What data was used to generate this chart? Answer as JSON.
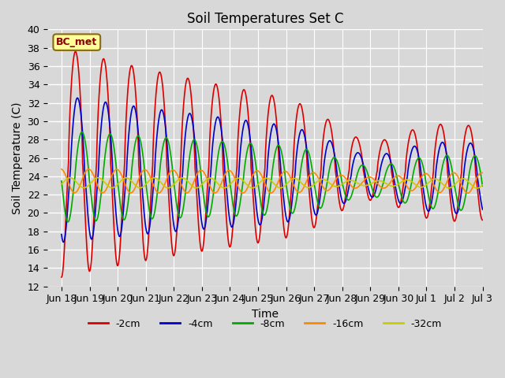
{
  "title": "Soil Temperatures Set C",
  "xlabel": "Time",
  "ylabel": "Soil Temperature (C)",
  "ylim": [
    12,
    40
  ],
  "yticks": [
    12,
    14,
    16,
    18,
    20,
    22,
    24,
    26,
    28,
    30,
    32,
    34,
    36,
    38,
    40
  ],
  "background_color": "#d8d8d8",
  "plot_bg_color": "#d8d8d8",
  "annotation_text": "BC_met",
  "annotation_box_color": "#ffff99",
  "annotation_box_edge": "#8b6914",
  "series": [
    {
      "label": "-2cm",
      "color": "#dd0000",
      "base_amp": 12.5,
      "mean": 25.5,
      "period": 1.0,
      "phase_shift": 0.25,
      "decay": 0.06,
      "mean_decay": 0.08,
      "asymmetry": 3.0
    },
    {
      "label": "-4cm",
      "color": "#0000cc",
      "base_amp": 8.0,
      "mean": 24.8,
      "period": 1.0,
      "phase_shift": 0.32,
      "decay": 0.05,
      "mean_decay": 0.07,
      "asymmetry": 2.0
    },
    {
      "label": "-8cm",
      "color": "#00aa00",
      "base_amp": 5.0,
      "mean": 24.0,
      "period": 1.0,
      "phase_shift": 0.48,
      "decay": 0.035,
      "mean_decay": 0.05,
      "asymmetry": 1.2
    },
    {
      "label": "-16cm",
      "color": "#ff8800",
      "base_amp": 1.3,
      "mean": 23.5,
      "period": 1.0,
      "phase_shift": 0.72,
      "decay": 0.01,
      "mean_decay": 0.015,
      "asymmetry": 0.5
    },
    {
      "label": "-32cm",
      "color": "#cccc00",
      "base_amp": 0.55,
      "mean": 23.3,
      "period": 1.0,
      "phase_shift": 1.05,
      "decay": 0.004,
      "mean_decay": 0.005,
      "asymmetry": 0.1
    }
  ],
  "x_tick_labels": [
    "Jun 18",
    "Jun 19",
    "Jun 20",
    "Jun 21",
    "Jun 22",
    "Jun 23",
    "Jun 24",
    "Jun 25",
    "Jun 26",
    "Jun 27",
    "Jun 28",
    "Jun 29",
    "Jun 30",
    "Jul 1",
    "Jul 2",
    "Jul 3"
  ],
  "n_days": 15
}
